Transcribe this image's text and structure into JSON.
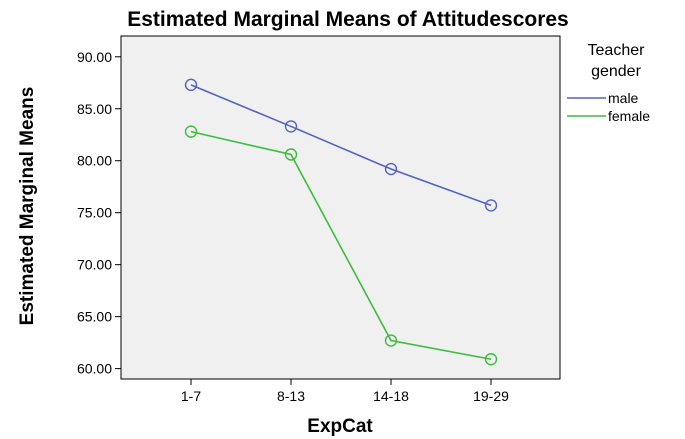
{
  "chart_data": {
    "type": "line",
    "title": "Estimated Marginal Means of Attitudescores",
    "xlabel": "ExpCat",
    "ylabel": "Estimated Marginal Means",
    "categories": [
      "1-7",
      "8-13",
      "14-18",
      "19-29"
    ],
    "ylim": [
      59,
      92
    ],
    "yticks": [
      "60.00",
      "65.00",
      "70.00",
      "75.00",
      "80.00",
      "85.00",
      "90.00"
    ],
    "grid": false,
    "legend": {
      "title_line1": "Teacher",
      "title_line2": "gender",
      "placement": "right"
    },
    "markers": "open-circle",
    "plot_background": "#f0f0f0",
    "series": [
      {
        "name": "male",
        "color": "#5464be",
        "values": [
          87.3,
          83.3,
          79.2,
          75.7
        ]
      },
      {
        "name": "female",
        "color": "#3dbc3d",
        "values": [
          82.8,
          80.6,
          62.7,
          60.9
        ]
      }
    ]
  }
}
